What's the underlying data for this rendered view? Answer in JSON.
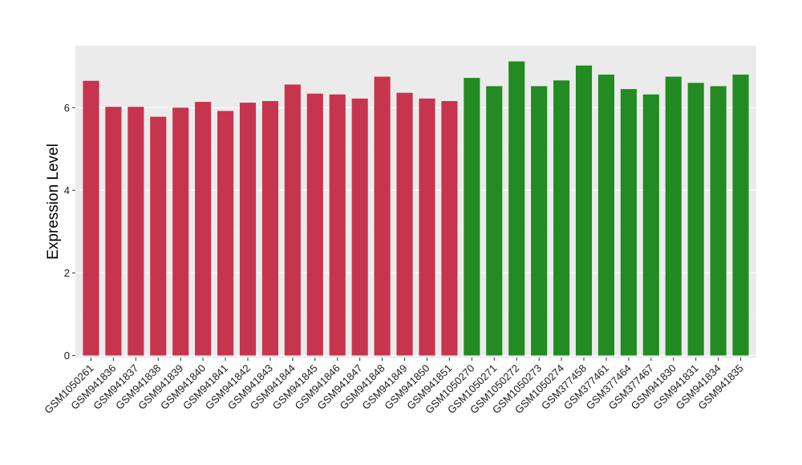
{
  "chart_data": {
    "type": "bar",
    "title": "",
    "xlabel": "",
    "ylabel": "Expression Level",
    "ylim": [
      -0.05,
      7.5
    ],
    "yticks": [
      0,
      2,
      4,
      6
    ],
    "grid": true,
    "legend": "none",
    "categories": [
      "GSM1050261",
      "GSM941836",
      "GSM941837",
      "GSM941838",
      "GSM941839",
      "GSM941840",
      "GSM941841",
      "GSM941842",
      "GSM941843",
      "GSM941844",
      "GSM941845",
      "GSM941846",
      "GSM941847",
      "GSM941848",
      "GSM941849",
      "GSM941850",
      "GSM941851",
      "GSM1050270",
      "GSM1050271",
      "GSM1050272",
      "GSM1050273",
      "GSM1050274",
      "GSM377458",
      "GSM377461",
      "GSM377464",
      "GSM377467",
      "GSM941830",
      "GSM941831",
      "GSM941834",
      "GSM941835"
    ],
    "values": [
      6.65,
      6.02,
      6.02,
      5.78,
      6.0,
      6.14,
      5.92,
      6.12,
      6.16,
      6.56,
      6.34,
      6.32,
      6.22,
      6.75,
      6.36,
      6.22,
      6.16,
      6.72,
      6.52,
      7.12,
      6.52,
      6.66,
      7.02,
      6.8,
      6.45,
      6.32,
      6.75,
      6.6,
      6.52,
      6.8
    ],
    "group_sizes": [
      17,
      13
    ],
    "colors": [
      "#c7344d",
      "#228b22"
    ],
    "panel_bg": "#ebebeb",
    "grid_major": "#ffffff",
    "grid_minor": "#f2f2f2"
  }
}
